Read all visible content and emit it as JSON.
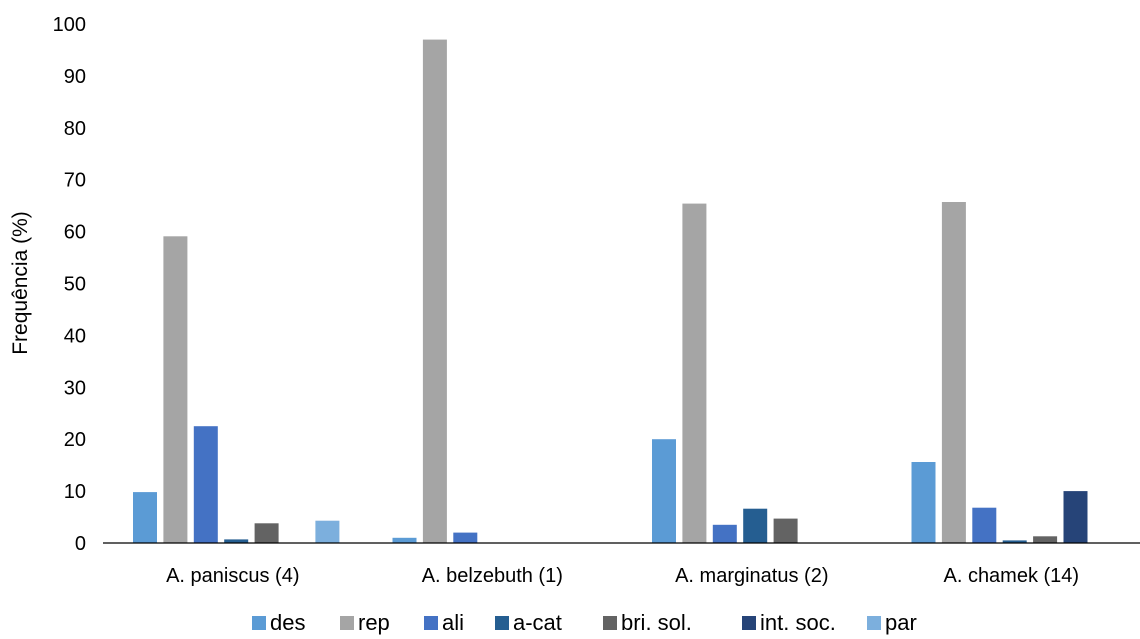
{
  "chart_data": {
    "type": "bar",
    "title": "",
    "xlabel": "",
    "ylabel": "Frequência (%)",
    "ylim": [
      0,
      100
    ],
    "yticks": [
      "0",
      "10",
      "20",
      "30",
      "40",
      "50",
      "60",
      "70",
      "80",
      "90",
      "100"
    ],
    "grid": false,
    "legend_position": "bottom",
    "categories": [
      "A. paniscus (4)",
      "A. belzebuth (1)",
      "A. marginatus (2)",
      "A. chamek (14)"
    ],
    "series": [
      {
        "name": "des",
        "color": "#5B9BD5",
        "values": [
          9.8,
          1.0,
          20.0,
          15.6
        ]
      },
      {
        "name": "rep",
        "color": "#A5A5A5",
        "values": [
          59.1,
          97.0,
          65.4,
          65.7
        ]
      },
      {
        "name": "ali",
        "color": "#4472C4",
        "values": [
          22.5,
          2.0,
          3.5,
          6.8
        ]
      },
      {
        "name": "a-cat",
        "color": "#255E91",
        "values": [
          0.7,
          0,
          6.6,
          0.5
        ]
      },
      {
        "name": "bri. sol.",
        "color": "#636363",
        "values": [
          3.8,
          0,
          4.7,
          1.3
        ]
      },
      {
        "name": "int. soc.",
        "color": "#264478",
        "values": [
          0,
          0,
          0,
          10.0
        ]
      },
      {
        "name": "par",
        "color": "#7CAFDD",
        "values": [
          4.3,
          0,
          0,
          0
        ]
      }
    ]
  }
}
